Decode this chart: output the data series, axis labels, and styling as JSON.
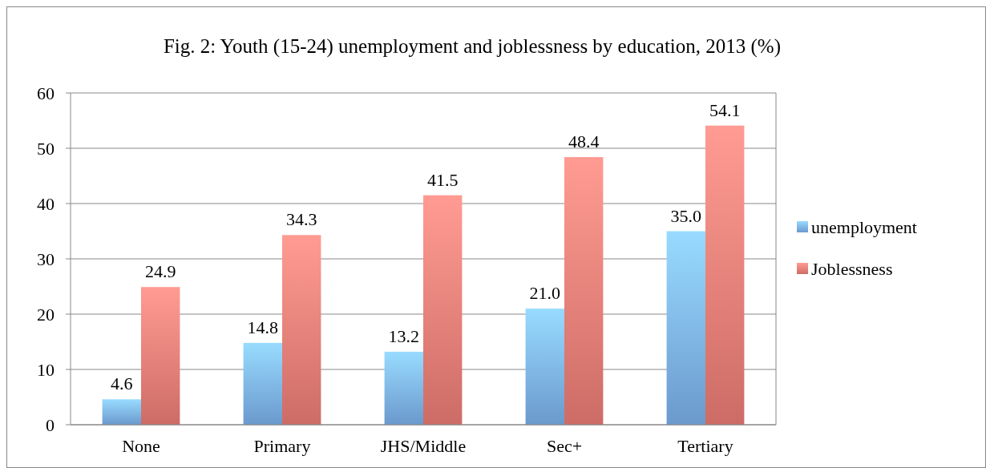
{
  "chart_data": {
    "type": "bar",
    "title": "Fig. 2: Youth (15-24) unemployment and joblessness by education, 2013 (%)",
    "categories": [
      "None",
      "Primary",
      "JHS/Middle",
      "Sec+",
      "Tertiary"
    ],
    "series": [
      {
        "name": "unemployment",
        "color": "#7bb1ec",
        "values": [
          4.6,
          14.8,
          13.2,
          21.0,
          35.0
        ],
        "value_labels": [
          "4.6",
          "14.8",
          "13.2",
          "21.0",
          "35.0"
        ]
      },
      {
        "name": "Joblessness",
        "color": "#ec7d76",
        "values": [
          24.9,
          34.3,
          41.5,
          48.4,
          54.1
        ],
        "value_labels": [
          "24.9",
          "34.3",
          "41.5",
          "48.4",
          "54.1"
        ]
      }
    ],
    "ylim": [
      0,
      60
    ],
    "yticks": [
      0,
      10,
      20,
      30,
      40,
      50,
      60
    ],
    "grid": "y",
    "legend": "right"
  }
}
